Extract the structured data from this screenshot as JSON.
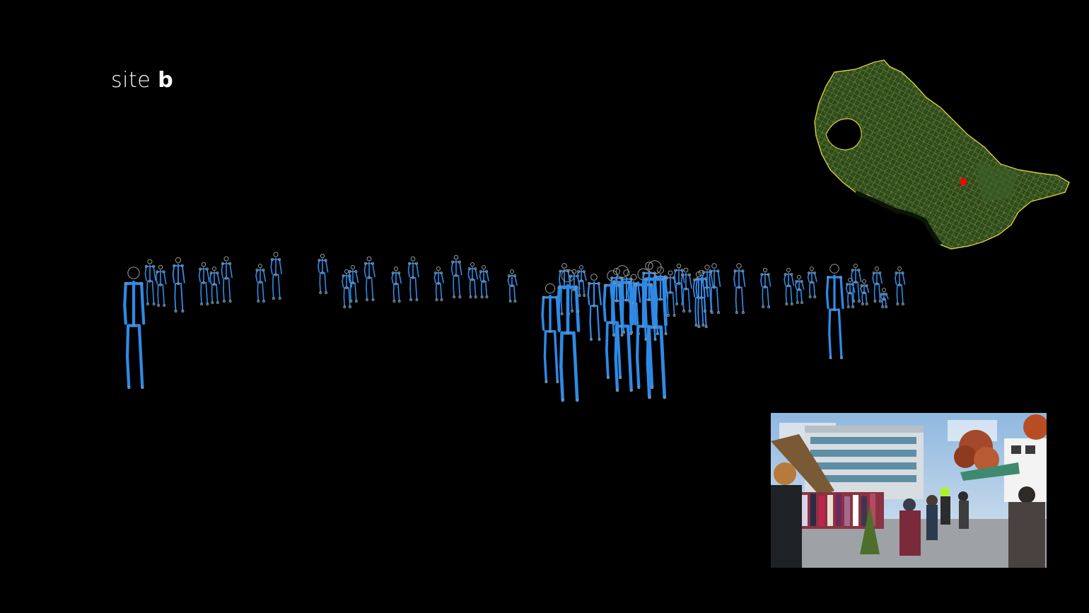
{
  "title": {
    "prefix": "site ",
    "site_letter": "b"
  },
  "colors": {
    "background": "#000000",
    "skeleton": "#2f8ae6",
    "joint": "#9a9a9a",
    "map_fill": "#2b4a1e",
    "map_lines": "#c9c23a",
    "site_marker": "#ff0000",
    "sky": "#9fc3e6"
  },
  "icons": {
    "minimap": "location-map",
    "marker": "site-marker-dot",
    "photo": "street-market-photo"
  }
}
